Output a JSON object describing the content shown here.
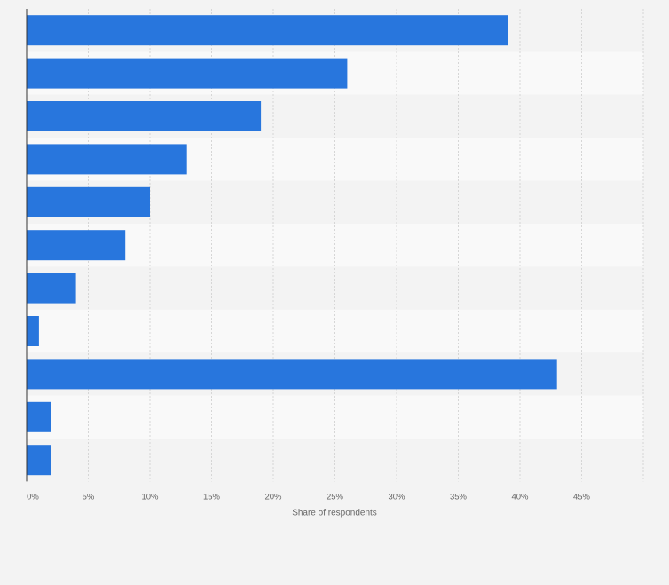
{
  "chart_data": {
    "type": "bar",
    "orientation": "horizontal",
    "categories": [
      "",
      "",
      "",
      "",
      "",
      "",
      "",
      "",
      "",
      "",
      ""
    ],
    "values": [
      39,
      26,
      19,
      13,
      10,
      8,
      4,
      1,
      43,
      2,
      2
    ],
    "xlabel": "Share of respondents",
    "x_ticks": [
      "0%",
      "5%",
      "10%",
      "15%",
      "20%",
      "25%",
      "30%",
      "35%",
      "40%",
      "45%"
    ],
    "xlim": [
      0,
      50
    ],
    "grid": true,
    "colors": {
      "bar": "#2876dd",
      "row_a": "#f3f3f3",
      "row_b": "#f9f9f9",
      "grid": "#d6d6d6",
      "axis": "#333333"
    }
  }
}
